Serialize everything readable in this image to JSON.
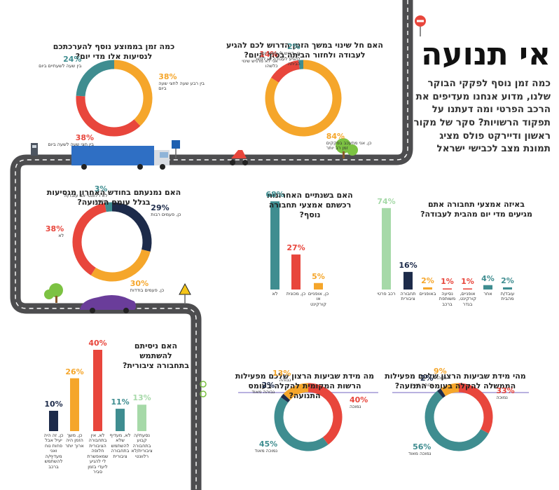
{
  "header": {
    "title": "אי תנועה",
    "intro": "כמה זמן נוסף לפקקי הבוקר שלנו, מדוע אנחנו מעדיפים את הרכב הפרטי ומה דעתנו על תפקוד הרשויות? סקר של מקור ראשון ודיירקט פולס מציג תמונת מצב לכבישי ישראל"
  },
  "chart_data": [
    {
      "type": "donut",
      "title": "כמה זמן בממוצע נוסף להערכתכם לנסיעות אלו מדי יום?",
      "categories": [
        "בין רבע שעה לחצי שעה ביום",
        "בין חצי שעה לשעה ביום",
        "בין שעה לשעתיים ביום"
      ],
      "values": [
        38,
        38,
        24
      ],
      "value_labels": [
        "38%",
        "38%",
        "24%"
      ],
      "colors": [
        "#f5a62b",
        "#e8463c",
        "#3f8d90"
      ]
    },
    {
      "type": "donut",
      "title": "האם חל שינוי במשך הזמן הדרוש לכם להגיע לעבודה ולחזור הביתה בסוף היום?",
      "categories": [
        "כן, אני מתעכב בפקקים זמן רב יותר",
        "אני לא מרגיש שינוי כלשהו",
        "כן, דרוש לי פחות זמן להגיע לעבודה או לחזור הביתה"
      ],
      "values": [
        84,
        14,
        2
      ],
      "value_labels": [
        "84%",
        "14%",
        "2%"
      ],
      "colors": [
        "#f5a62b",
        "#e8463c",
        "#3f8d90"
      ]
    },
    {
      "type": "donut",
      "title": "האם נמנעתם בחודש האחרון מנסיעות בגלל עומס התנועה?",
      "categories": [
        "כן, פעמים רבות",
        "כן, פעמים בודדות",
        "לא",
        "לא רלוונטי אני עובד/ת מהבית"
      ],
      "values": [
        29,
        30,
        38,
        3
      ],
      "value_labels": [
        "29%",
        "30%",
        "38%",
        "3%"
      ],
      "colors": [
        "#1d2b4a",
        "#f5a62b",
        "#e8463c",
        "#3f8d90"
      ]
    },
    {
      "type": "bar",
      "title": "האם בשנתיים האחרונות רכשתם אמצעי תחבורה נוסף?",
      "categories": [
        "לא",
        "כן, מכונית",
        "כן, אופניים או קורקינט"
      ],
      "values": [
        68,
        27,
        5
      ],
      "value_labels": [
        "68%",
        "27%",
        "5%"
      ],
      "colors": [
        "#3f8d90",
        "#e8463c",
        "#f5a62b"
      ]
    },
    {
      "type": "bar",
      "title": "באיזה אמצעי תחבורה אתם מגיעים מדי יום מהבית לעבודה?",
      "categories": [
        "רכב פרטי",
        "תחבורה ציבורית",
        "באופניים",
        "נסיעה משותפת ברכב",
        "אופניים, קורקינט, בגדר",
        "אחר",
        "עובד/ת מהבית"
      ],
      "values": [
        74,
        16,
        2,
        1,
        1,
        4,
        2
      ],
      "value_labels": [
        "74%",
        "16%",
        "2%",
        "1%",
        "1%",
        "4%",
        "2%"
      ],
      "colors": [
        "#a6d9a8",
        "#1d2b4a",
        "#f5a62b",
        "#e8463c",
        "#e8463c",
        "#3f8d90",
        "#3f8d90"
      ]
    },
    {
      "type": "bar",
      "title": "האם ניסיתם להשתמש בתחבורה ציבורית?",
      "categories": [
        "כן, זה היה יעיל אבל פחות נוח ואני מעדיף/ה להשתמש ברכב",
        "כן, משך הזמן היה ארוך יותר",
        "לא, אין בתחבורה הציבורית חלופה שמאפשרת לי להגיע ליעדי בזמן סביר",
        "לא, מעדיף שלא להשתמש בתחבורה ציבורית",
        "נסעתי/ה קבוע בתחבורה ציבורית/לא רלוונטי"
      ],
      "values": [
        10,
        26,
        40,
        11,
        13
      ],
      "value_labels": [
        "10%",
        "26%",
        "40%",
        "11%",
        "13%"
      ],
      "colors": [
        "#1d2b4a",
        "#f5a62b",
        "#e8463c",
        "#3f8d90",
        "#a6d9a8"
      ]
    },
    {
      "type": "donut",
      "title": "מה מידת שביעות הרצון שלכם מפעילות הרשות המקומית להקלה בעומס התנועה?",
      "categories": [
        "נמוכה",
        "נמוכה מאוד",
        "גבוהה מאוד",
        "גבוהה"
      ],
      "values": [
        40,
        45,
        2,
        13
      ],
      "value_labels": [
        "40%",
        "45%",
        "2%",
        "13%"
      ],
      "colors": [
        "#e8463c",
        "#3f8d90",
        "#1d2b4a",
        "#f5a62b"
      ]
    },
    {
      "type": "donut",
      "title": "מהי מידת שביעות הרצון שלכם מפעילות הממשלה להקלה בעומס התנועה?",
      "categories": [
        "נמוכה",
        "נמוכה מאוד",
        "גבוהה מאוד",
        "גבוהה"
      ],
      "values": [
        33,
        56,
        2,
        9
      ],
      "value_labels": [
        "33%",
        "56%",
        "2%",
        "9%"
      ],
      "colors": [
        "#e8463c",
        "#3f8d90",
        "#1d2b4a",
        "#f5a62b"
      ]
    }
  ]
}
